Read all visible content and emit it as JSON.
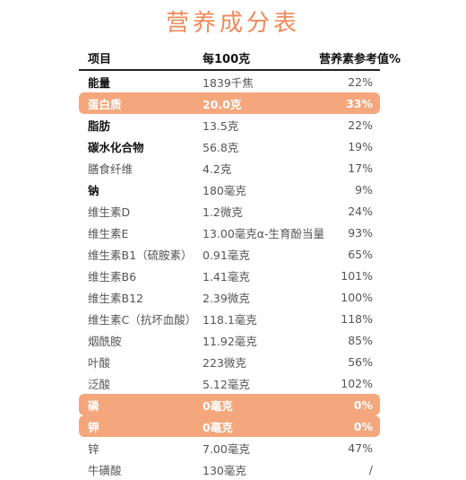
{
  "title": "营养成分表",
  "header": {
    "item": "项目",
    "per100g": "每100克",
    "nrv": "营养素参考值%"
  },
  "rows": [
    {
      "name": "能量",
      "value": "1839千焦",
      "nrv": "22%",
      "bold": true,
      "highlight": false
    },
    {
      "name": "蛋白质",
      "value": "20.0克",
      "nrv": "33%",
      "bold": true,
      "highlight": true
    },
    {
      "name": "脂肪",
      "value": "13.5克",
      "nrv": "22%",
      "bold": true,
      "highlight": false
    },
    {
      "name": "碳水化合物",
      "value": "56.8克",
      "nrv": "19%",
      "bold": true,
      "highlight": false
    },
    {
      "name": "膳食纤维",
      "value": "4.2克",
      "nrv": "17%",
      "bold": false,
      "highlight": false
    },
    {
      "name": "钠",
      "value": "180毫克",
      "nrv": "9%",
      "bold": true,
      "highlight": false
    },
    {
      "name": "维生素D",
      "value": "1.2微克",
      "nrv": "24%",
      "bold": false,
      "highlight": false
    },
    {
      "name": "维生素E",
      "value": "13.00毫克α-生育酚当量",
      "nrv": "93%",
      "bold": false,
      "highlight": false
    },
    {
      "name": "维生素B1（硫胺素）",
      "value": "0.91毫克",
      "nrv": "65%",
      "bold": false,
      "highlight": false
    },
    {
      "name": "维生素B6",
      "value": "1.41毫克",
      "nrv": "101%",
      "bold": false,
      "highlight": false
    },
    {
      "name": "维生素B12",
      "value": "2.39微克",
      "nrv": "100%",
      "bold": false,
      "highlight": false
    },
    {
      "name": "维生素C（抗坏血酸）",
      "value": "118.1毫克",
      "nrv": "118%",
      "bold": false,
      "highlight": false
    },
    {
      "name": "烟酰胺",
      "value": "11.92毫克",
      "nrv": "85%",
      "bold": false,
      "highlight": false
    },
    {
      "name": "叶酸",
      "value": "223微克",
      "nrv": "56%",
      "bold": false,
      "highlight": false
    },
    {
      "name": "泛酸",
      "value": "5.12毫克",
      "nrv": "102%",
      "bold": false,
      "highlight": false
    },
    {
      "name": "磷",
      "value": "0毫克",
      "nrv": "0%",
      "bold": true,
      "highlight": true
    },
    {
      "name": "钾",
      "value": "0毫克",
      "nrv": "0%",
      "bold": true,
      "highlight": true
    },
    {
      "name": "锌",
      "value": "7.00毫克",
      "nrv": "47%",
      "bold": false,
      "highlight": false
    },
    {
      "name": "牛磺酸",
      "value": "130毫克",
      "nrv": "/",
      "bold": false,
      "highlight": false
    }
  ],
  "colors": {
    "accent": "#f08a5a",
    "highlight_bg": "#f4a77d"
  }
}
